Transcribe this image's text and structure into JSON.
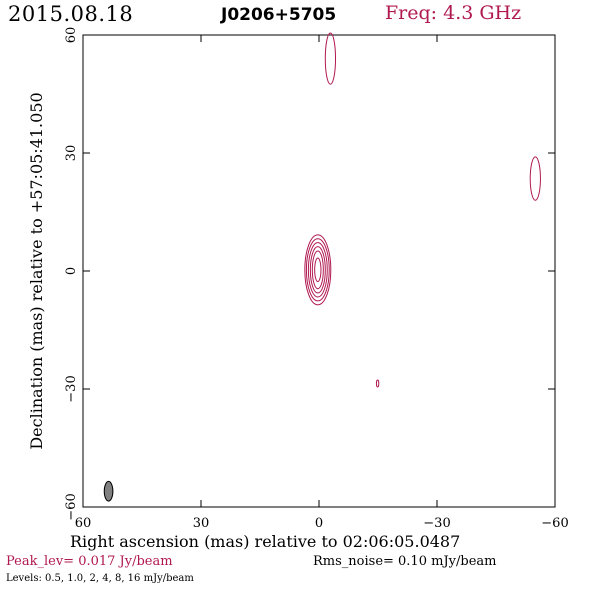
{
  "header": {
    "date": "2015.08.18",
    "source": "J0206+5705",
    "frequency": "Freq: 4.3 GHz"
  },
  "footer": {
    "peak": "Peak_lev=  0.017 Jy/beam",
    "rms": "Rms_noise= 0.10 mJy/beam",
    "levels": "Levels: 0.5, 1.0,   2,   4,   8,  16 mJy/beam"
  },
  "colors": {
    "contour": "#b01850",
    "frame": "#000000",
    "beam": "#808080"
  },
  "chart_data": {
    "type": "contour",
    "xlabel": "Right ascension (mas) relative to 02:06:05.0487",
    "ylabel": "Declination (mas) relative to +57:05:41.050",
    "xlim": [
      60,
      -60
    ],
    "ylim": [
      -60,
      60
    ],
    "x_ticks": [
      {
        "value": 60,
        "label": "60"
      },
      {
        "value": 30,
        "label": "30"
      },
      {
        "value": 0,
        "label": "0"
      },
      {
        "value": -30,
        "label": "−30"
      },
      {
        "value": -60,
        "label": "−60"
      }
    ],
    "y_ticks": [
      {
        "value": -60,
        "label": "−60"
      },
      {
        "value": -30,
        "label": "−30"
      },
      {
        "value": 0,
        "label": "0"
      },
      {
        "value": 30,
        "label": "30"
      },
      {
        "value": 60,
        "label": "60"
      }
    ],
    "contour_levels_mJy": [
      0.5,
      1.0,
      2,
      4,
      8,
      16
    ],
    "components": [
      {
        "x": 0.3,
        "y": 0.3,
        "rx": [
          0.8,
          1.4,
          1.9,
          2.4,
          2.9,
          3.3
        ],
        "ry": [
          3.0,
          4.8,
          5.9,
          6.9,
          7.9,
          8.9
        ]
      },
      {
        "x": -2.9,
        "y": 54.0,
        "rx": [
          1.3
        ],
        "ry": [
          6.5
        ]
      },
      {
        "x": -55.0,
        "y": 23.5,
        "rx": [
          1.3
        ],
        "ry": [
          5.5
        ]
      },
      {
        "x": -14.9,
        "y": -28.6,
        "rx": [
          0.3
        ],
        "ry": [
          0.9
        ]
      }
    ],
    "beam": {
      "x": 53.5,
      "y": -56.0,
      "major_mas": 5.0,
      "minor_mas": 2.2
    }
  }
}
